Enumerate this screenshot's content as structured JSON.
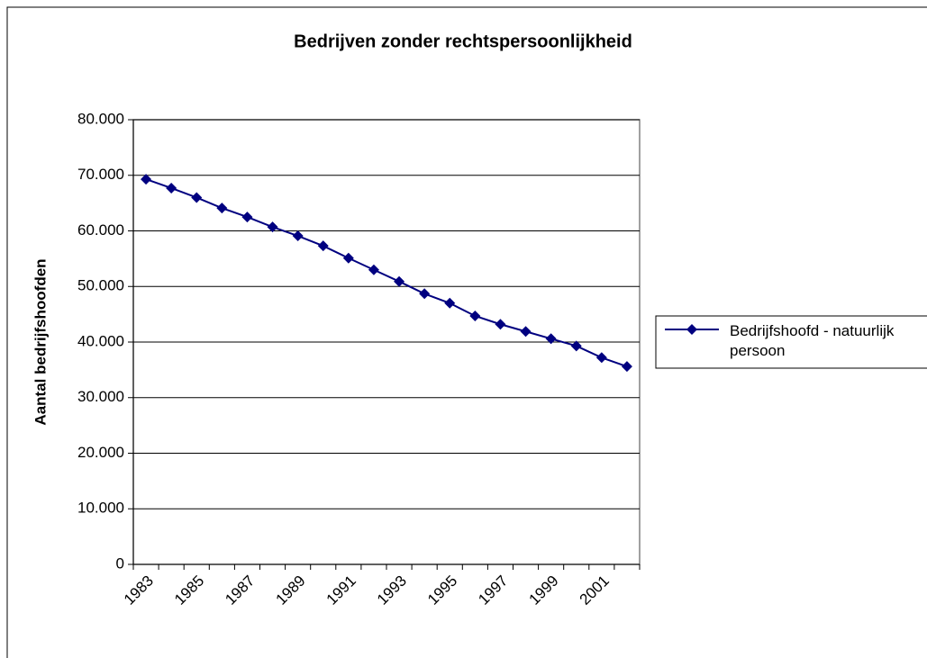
{
  "chart_data": {
    "type": "line",
    "title": "Bedrijven zonder rechtspersoonlijkheid",
    "y_label": "Aantal bedrijfshoofden",
    "categories": [
      "1983",
      null,
      "1985",
      null,
      "1987",
      null,
      "1989",
      null,
      "1991",
      null,
      "1993",
      null,
      "1995",
      null,
      "1997",
      null,
      "1999",
      null,
      "2001",
      null
    ],
    "series": [
      {
        "name": "Bedrijfshoofd - natuurlijk persoon",
        "color": "#000080",
        "values": [
          69300,
          67700,
          66000,
          64100,
          62500,
          60700,
          59100,
          57300,
          55100,
          53000,
          50900,
          48700,
          47000,
          44700,
          43200,
          41900,
          40600,
          39300,
          37200,
          35600
        ]
      }
    ],
    "ylim": [
      0,
      80000
    ],
    "yticks": [
      0,
      {
        "value": 10000,
        "label": "10.000"
      },
      {
        "value": 20000,
        "label": "20.000"
      },
      {
        "value": 30000,
        "label": "30.000"
      },
      {
        "value": 40000,
        "label": "40.000"
      },
      {
        "value": 50000,
        "label": "50.000"
      },
      {
        "value": 60000,
        "label": "60.000"
      },
      {
        "value": 70000,
        "label": "70.000"
      },
      {
        "value": 80000,
        "label": "80.000"
      }
    ],
    "grid": true,
    "legend": "right"
  }
}
